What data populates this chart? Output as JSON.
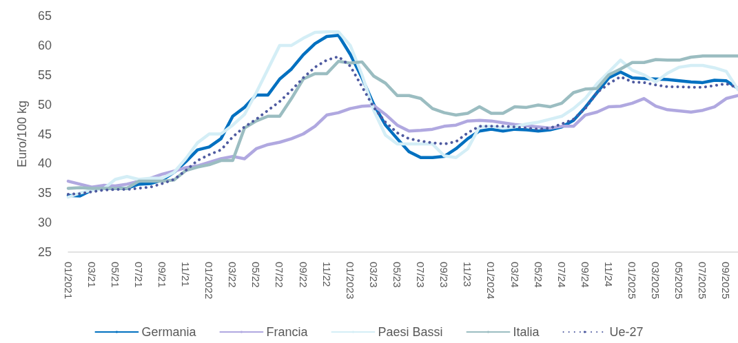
{
  "chart_data": {
    "type": "line",
    "ylabel": "Euro/100 kg",
    "ylim": [
      25,
      65
    ],
    "yticks": [
      25,
      30,
      35,
      40,
      45,
      50,
      55,
      60,
      65
    ],
    "grid": false,
    "legend": "bottom",
    "marker": "none",
    "categories": [
      "01/2021",
      null,
      "03/21",
      null,
      "05/21",
      null,
      "07/21",
      null,
      "09/21",
      null,
      "11/21",
      null,
      "01/2022",
      null,
      "03/22",
      null,
      "05/22",
      null,
      "07/22",
      null,
      "09/22",
      null,
      "11/22",
      null,
      "01/2023",
      null,
      "03/23",
      null,
      "05/23",
      null,
      "07/23",
      null,
      "09/23",
      null,
      "11/23",
      null,
      "01/2024",
      null,
      "03/24",
      null,
      "05/24",
      null,
      "07/24",
      null,
      "09/24",
      null,
      "11/24",
      null,
      "01/2025",
      null,
      "03/2025",
      null,
      "05/2025",
      null,
      "07/2025",
      null,
      "09/2025",
      null
    ],
    "series": [
      {
        "name": "Germania",
        "color": "#0070c0",
        "line_style": "solid",
        "values": [
          34.6,
          34.5,
          35.5,
          35.8,
          35.8,
          35.8,
          36.5,
          36.6,
          37.2,
          38.5,
          40.3,
          42.3,
          42.8,
          44.2,
          48,
          49.5,
          51.6,
          51.6,
          54.3,
          56,
          58.4,
          60.3,
          61.5,
          61.7,
          58.5,
          54.5,
          50,
          46.5,
          44.2,
          42,
          41,
          41,
          41.2,
          42.5,
          44.2,
          45.5,
          45.8,
          45.5,
          45.8,
          45.7,
          45.5,
          45.7,
          46.2,
          47.3,
          49.5,
          52,
          54.5,
          55.5,
          54.5,
          54.4,
          54.3,
          54.2,
          54,
          53.8,
          53.7,
          54.1,
          54,
          52.7
        ]
      },
      {
        "name": "Francia",
        "color": "#b0a8e0",
        "line_style": "solid",
        "values": [
          37,
          36.5,
          36,
          36.3,
          36.2,
          36.5,
          37,
          37.5,
          38.2,
          38.7,
          39.3,
          39.6,
          40.2,
          40.8,
          41.2,
          40.8,
          42.5,
          43.2,
          43.6,
          44.2,
          45,
          46.3,
          48.2,
          48.6,
          49.3,
          49.7,
          49.8,
          48.3,
          46.5,
          45.5,
          45.6,
          45.8,
          46.3,
          46.5,
          47.2,
          47.3,
          47.2,
          46.9,
          46.6,
          46.4,
          46.2,
          46,
          46.3,
          46.3,
          48.2,
          48.7,
          49.6,
          49.7,
          50.2,
          51,
          49.7,
          49.1,
          48.9,
          48.7,
          49,
          49.6,
          51,
          51.5
        ]
      },
      {
        "name": "Paesi Bassi",
        "color": "#d4eef6",
        "line_style": "solid",
        "values": [
          34.3,
          35,
          35.5,
          35.7,
          37.3,
          37.8,
          37.3,
          37.5,
          37.5,
          38.5,
          40.8,
          43.5,
          45,
          45,
          46.5,
          48.3,
          52,
          56,
          60,
          60,
          61.2,
          62.2,
          62.3,
          62.3,
          60,
          55,
          49,
          44.8,
          43.3,
          43.3,
          43.3,
          43.3,
          41.3,
          41,
          42.5,
          46.2,
          46.3,
          46,
          46.2,
          46.7,
          47,
          47.5,
          48,
          49.3,
          51,
          53.5,
          55.5,
          57.5,
          55.8,
          55,
          53.8,
          55.3,
          56.3,
          56.6,
          56.6,
          56.2,
          55.6,
          52.5
        ]
      },
      {
        "name": "Italia",
        "color": "#9bbdc1",
        "line_style": "solid",
        "values": [
          35.8,
          35.9,
          35.8,
          35.8,
          35.8,
          35.8,
          37,
          37,
          37,
          37.2,
          38.8,
          39.4,
          39.8,
          40.5,
          40.5,
          46,
          47.2,
          48,
          48,
          51,
          54.3,
          55.2,
          55.2,
          57.3,
          57,
          57.2,
          54.8,
          53.6,
          51.5,
          51.5,
          51,
          49.3,
          48.6,
          48.2,
          48.5,
          49.6,
          48.5,
          48.5,
          49.6,
          49.5,
          49.9,
          49.6,
          50.2,
          52,
          52.6,
          52.7,
          55,
          56,
          57.1,
          57.1,
          57.6,
          57.5,
          57.5,
          58,
          58.2,
          58.2,
          58.2,
          58.2
        ]
      },
      {
        "name": "Ue-27",
        "color": "#4e5aa0",
        "line_style": "dotted",
        "values": [
          34.8,
          34.9,
          35.2,
          35.5,
          35.6,
          35.6,
          35.8,
          36,
          36.6,
          37.3,
          38.8,
          40.5,
          41.5,
          42.3,
          44.5,
          46.2,
          47.5,
          49,
          50.5,
          52.4,
          54.5,
          56.3,
          57.5,
          58.1,
          56.5,
          53,
          49.5,
          47,
          45.2,
          44.2,
          43.8,
          43.5,
          43.3,
          43.7,
          45.2,
          46.3,
          46.3,
          46.3,
          46.2,
          46,
          45.8,
          46,
          46.7,
          47.5,
          49.3,
          52,
          53.5,
          54.7,
          53.8,
          53.7,
          53.3,
          53,
          53,
          52.9,
          52.9,
          53.2,
          53.5,
          52.8
        ]
      }
    ]
  }
}
